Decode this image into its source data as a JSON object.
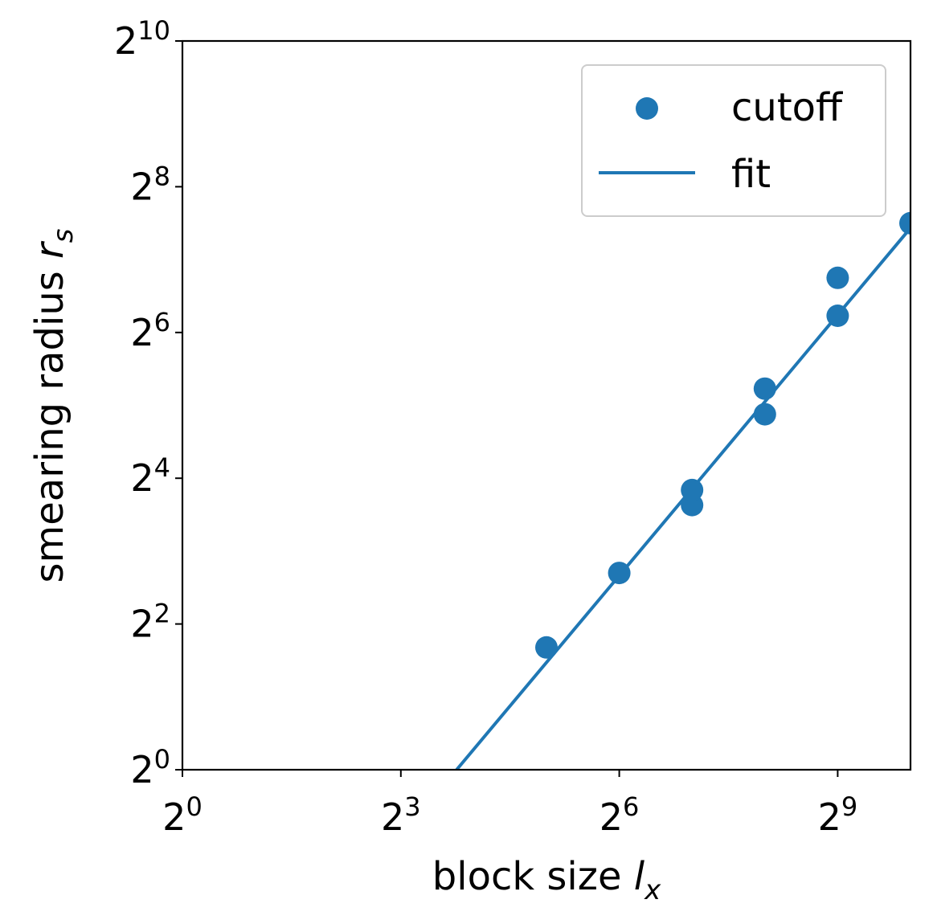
{
  "chart_data": {
    "type": "scatter",
    "x_scale": "log2",
    "y_scale": "log2",
    "xlim": [
      1,
      1024
    ],
    "ylim": [
      1,
      1024
    ],
    "xlabel": {
      "text": "block size ",
      "var": "l",
      "sub": "x"
    },
    "ylabel": {
      "text": "smearing radius ",
      "var": "r",
      "sub": "s"
    },
    "x_ticks": [
      {
        "base": "2",
        "exp": "0",
        "value": 1
      },
      {
        "base": "2",
        "exp": "3",
        "value": 8
      },
      {
        "base": "2",
        "exp": "6",
        "value": 64
      },
      {
        "base": "2",
        "exp": "9",
        "value": 512
      }
    ],
    "y_ticks": [
      {
        "base": "2",
        "exp": "0",
        "value": 1
      },
      {
        "base": "2",
        "exp": "2",
        "value": 4
      },
      {
        "base": "2",
        "exp": "4",
        "value": 16
      },
      {
        "base": "2",
        "exp": "6",
        "value": 64
      },
      {
        "base": "2",
        "exp": "8",
        "value": 256
      },
      {
        "base": "2",
        "exp": "10",
        "value": 1024
      }
    ],
    "series": [
      {
        "name": "cutoff",
        "kind": "scatter",
        "color": "#1f77b4",
        "points": [
          {
            "x": 32,
            "y": 3.2
          },
          {
            "x": 64,
            "y": 6.5
          },
          {
            "x": 128,
            "y": 12.4
          },
          {
            "x": 128,
            "y": 14.3
          },
          {
            "x": 256,
            "y": 29.4
          },
          {
            "x": 256,
            "y": 37.5
          },
          {
            "x": 512,
            "y": 75.0
          },
          {
            "x": 512,
            "y": 107.6
          },
          {
            "x": 1024,
            "y": 181.0
          }
        ]
      },
      {
        "name": "fit",
        "kind": "line",
        "color": "#1f77b4",
        "points": [
          {
            "x": 13.6,
            "y": 1.0
          },
          {
            "x": 1024,
            "y": 173.0
          }
        ]
      }
    ],
    "legend": {
      "position": "top-right",
      "entries": [
        "cutoff",
        "fit"
      ]
    },
    "grid": false
  }
}
